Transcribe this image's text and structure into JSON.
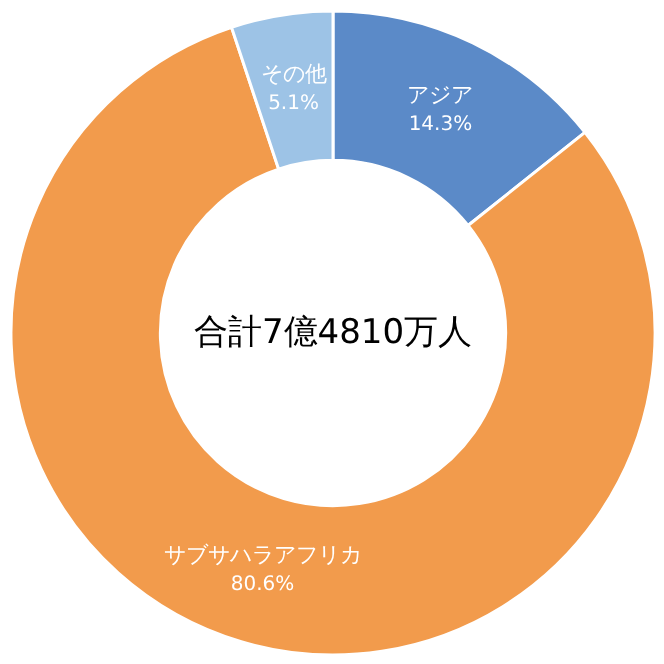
{
  "chart_data": {
    "type": "donut",
    "categories": [
      "アジア",
      "サブサハラアフリカ",
      "その他"
    ],
    "values": [
      14.3,
      80.6,
      5.1
    ],
    "colors": [
      "#5b8ac8",
      "#f29b4c",
      "#9dc3e6"
    ],
    "value_labels": [
      "14.3%",
      "80.6%",
      "5.1%"
    ],
    "annotations": [
      "合計7億4810万人"
    ]
  }
}
